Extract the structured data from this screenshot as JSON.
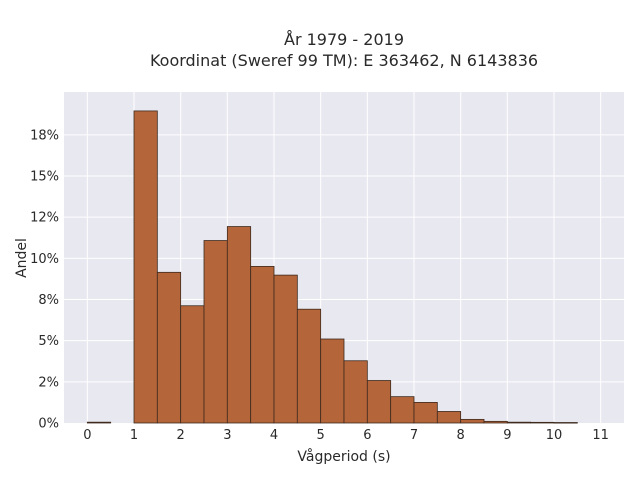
{
  "chart_data": {
    "type": "bar",
    "title_line1": "År 1979 - 2019",
    "title_line2": "Koordinat (Sweref 99 TM): E 363462, N 6143836",
    "xlabel": "Vågperiod (s)",
    "ylabel": "Andel",
    "xlim": [
      -0.5,
      11.5
    ],
    "ylim": [
      0,
      0.201
    ],
    "x_ticks": [
      0,
      1,
      2,
      3,
      4,
      5,
      6,
      7,
      8,
      9,
      10,
      11
    ],
    "x_tick_labels": [
      "0",
      "1",
      "2",
      "3",
      "4",
      "5",
      "6",
      "7",
      "8",
      "9",
      "10",
      "11"
    ],
    "y_ticks": [
      0,
      0.025,
      0.05,
      0.075,
      0.1,
      0.125,
      0.15,
      0.175
    ],
    "y_tick_labels": [
      "0%",
      "2%",
      "5%",
      "8%",
      "10%",
      "12%",
      "15%",
      "18%"
    ],
    "bin_width": 0.5,
    "bins": [
      {
        "start": 0.0,
        "value": 0.0005
      },
      {
        "start": 1.0,
        "value": 0.1895
      },
      {
        "start": 1.5,
        "value": 0.0915
      },
      {
        "start": 2.0,
        "value": 0.0712
      },
      {
        "start": 2.5,
        "value": 0.1108
      },
      {
        "start": 3.0,
        "value": 0.1193
      },
      {
        "start": 3.5,
        "value": 0.0951
      },
      {
        "start": 4.0,
        "value": 0.0898
      },
      {
        "start": 4.5,
        "value": 0.0691
      },
      {
        "start": 5.0,
        "value": 0.051
      },
      {
        "start": 5.5,
        "value": 0.0378
      },
      {
        "start": 6.0,
        "value": 0.0258
      },
      {
        "start": 6.5,
        "value": 0.016
      },
      {
        "start": 7.0,
        "value": 0.0125
      },
      {
        "start": 7.5,
        "value": 0.007
      },
      {
        "start": 8.0,
        "value": 0.0022
      },
      {
        "start": 8.5,
        "value": 0.001
      },
      {
        "start": 9.0,
        "value": 0.0005
      },
      {
        "start": 9.5,
        "value": 0.0004
      },
      {
        "start": 10.0,
        "value": 0.0003
      }
    ],
    "bar_color": "#b5653a",
    "bar_edge_color": "#3d2a1e",
    "plot_bg": "#e8e8f0",
    "grid": true,
    "grid_color": "#ffffff",
    "legend": false
  }
}
